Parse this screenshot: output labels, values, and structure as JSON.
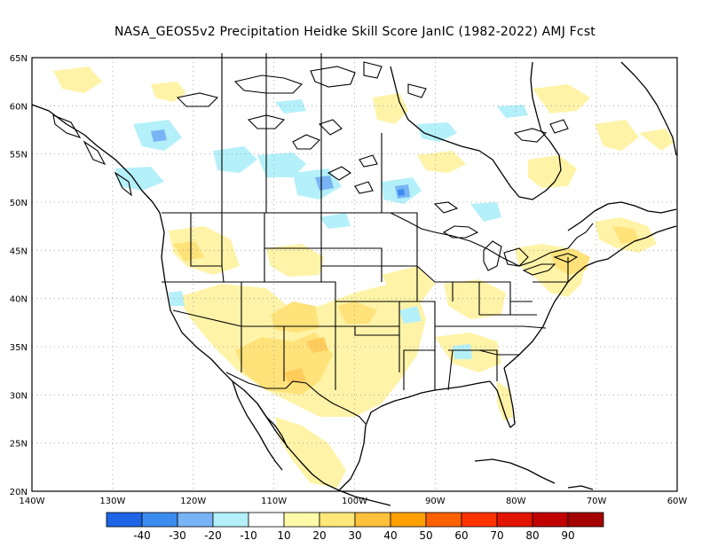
{
  "title": "NASA_GEOS5v2  Precipitation Heidke Skill Score JanIC (1982-2022) AMJ Fcst",
  "map": {
    "lon_range": [
      -140,
      -60
    ],
    "lat_range": [
      20,
      65
    ],
    "x_ticks": [
      "140W",
      "130W",
      "120W",
      "110W",
      "100W",
      "90W",
      "80W",
      "70W",
      "60W"
    ],
    "y_ticks": [
      "20N",
      "25N",
      "30N",
      "35N",
      "40N",
      "45N",
      "50N",
      "55N",
      "60N",
      "65N"
    ],
    "grid": "dotted"
  },
  "colorbar": {
    "labels": [
      "-40",
      "-30",
      "-20",
      "-10",
      "10",
      "20",
      "30",
      "40",
      "50",
      "60",
      "70",
      "80",
      "90"
    ],
    "colors": [
      "#1e64e6",
      "#3c8cf0",
      "#78b4f5",
      "#b4f0fa",
      "#ffffff",
      "#fffaaa",
      "#ffe878",
      "#ffc03c",
      "#ffa000",
      "#ff6000",
      "#ff3200",
      "#e11400",
      "#c00000",
      "#a50000"
    ]
  },
  "field_colors": {
    "light_yellow": "#fff3a8",
    "yellow": "#ffe27a",
    "light_orange": "#ffcc5c",
    "light_blue": "#b4f0fa",
    "blue": "#78b4f5",
    "mid_blue": "#3c8cf0"
  }
}
